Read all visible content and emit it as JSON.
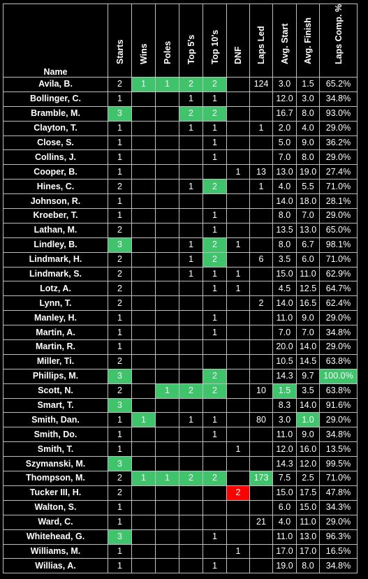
{
  "headers": {
    "name": "Name",
    "starts": "Starts",
    "wins": "Wins",
    "poles": "Poles",
    "top5": "Top 5's",
    "top10": "Top 10's",
    "dnf": "DNF",
    "laps_led": "Laps Led",
    "avg_start": "Avg. Start",
    "avg_finish": "Avg. Finish",
    "laps_comp": "Laps Comp. %"
  },
  "colors": {
    "background": "#000000",
    "text": "#ffffff",
    "grid": "#bfbfbf",
    "highlight_green": "#3fc36b",
    "highlight_red": "#ff0000"
  },
  "columns": [
    "name",
    "starts",
    "wins",
    "poles",
    "top5",
    "top10",
    "dnf",
    "laps_led",
    "avg_start",
    "avg_finish",
    "laps_comp"
  ],
  "rows": [
    {
      "name": "Avila, B.",
      "starts": "2",
      "wins": "1",
      "poles": "1",
      "top5": "2",
      "top10": "2",
      "dnf": "",
      "laps_led": "124",
      "avg_start": "3.0",
      "avg_finish": "1.5",
      "laps_comp": "65.2%",
      "hl": {
        "wins": "green",
        "poles": "green",
        "top5": "green",
        "top10": "green"
      }
    },
    {
      "name": "Bollinger, C.",
      "starts": "1",
      "wins": "",
      "poles": "",
      "top5": "1",
      "top10": "1",
      "dnf": "",
      "laps_led": "",
      "avg_start": "12.0",
      "avg_finish": "3.0",
      "laps_comp": "34.8%",
      "hl": {}
    },
    {
      "name": "Bramble, M.",
      "starts": "3",
      "wins": "",
      "poles": "",
      "top5": "2",
      "top10": "2",
      "dnf": "",
      "laps_led": "",
      "avg_start": "16.7",
      "avg_finish": "8.0",
      "laps_comp": "93.0%",
      "hl": {
        "starts": "green",
        "top5": "green",
        "top10": "green"
      }
    },
    {
      "name": "Clayton, T.",
      "starts": "1",
      "wins": "",
      "poles": "",
      "top5": "1",
      "top10": "1",
      "dnf": "",
      "laps_led": "1",
      "avg_start": "2.0",
      "avg_finish": "4.0",
      "laps_comp": "29.0%",
      "hl": {}
    },
    {
      "name": "Close, S.",
      "starts": "1",
      "wins": "",
      "poles": "",
      "top5": "",
      "top10": "1",
      "dnf": "",
      "laps_led": "",
      "avg_start": "5.0",
      "avg_finish": "9.0",
      "laps_comp": "36.2%",
      "hl": {}
    },
    {
      "name": "Collins, J.",
      "starts": "1",
      "wins": "",
      "poles": "",
      "top5": "",
      "top10": "1",
      "dnf": "",
      "laps_led": "",
      "avg_start": "7.0",
      "avg_finish": "8.0",
      "laps_comp": "29.0%",
      "hl": {}
    },
    {
      "name": "Cooper, B.",
      "starts": "1",
      "wins": "",
      "poles": "",
      "top5": "",
      "top10": "",
      "dnf": "1",
      "laps_led": "13",
      "avg_start": "13.0",
      "avg_finish": "19.0",
      "laps_comp": "27.4%",
      "hl": {}
    },
    {
      "name": "Hines, C.",
      "starts": "2",
      "wins": "",
      "poles": "",
      "top5": "1",
      "top10": "2",
      "dnf": "",
      "laps_led": "1",
      "avg_start": "4.0",
      "avg_finish": "5.5",
      "laps_comp": "71.0%",
      "hl": {
        "top10": "green"
      }
    },
    {
      "name": "Johnson, R.",
      "starts": "1",
      "wins": "",
      "poles": "",
      "top5": "",
      "top10": "",
      "dnf": "",
      "laps_led": "",
      "avg_start": "14.0",
      "avg_finish": "18.0",
      "laps_comp": "28.1%",
      "hl": {}
    },
    {
      "name": "Kroeber, T.",
      "starts": "1",
      "wins": "",
      "poles": "",
      "top5": "",
      "top10": "1",
      "dnf": "",
      "laps_led": "",
      "avg_start": "8.0",
      "avg_finish": "7.0",
      "laps_comp": "29.0%",
      "hl": {}
    },
    {
      "name": "Lathan, M.",
      "starts": "2",
      "wins": "",
      "poles": "",
      "top5": "",
      "top10": "1",
      "dnf": "",
      "laps_led": "",
      "avg_start": "13.5",
      "avg_finish": "13.0",
      "laps_comp": "65.0%",
      "hl": {}
    },
    {
      "name": "Lindley, B.",
      "starts": "3",
      "wins": "",
      "poles": "",
      "top5": "1",
      "top10": "2",
      "dnf": "1",
      "laps_led": "",
      "avg_start": "8.0",
      "avg_finish": "6.7",
      "laps_comp": "98.1%",
      "hl": {
        "starts": "green",
        "top10": "green"
      }
    },
    {
      "name": "Lindmark, H.",
      "starts": "2",
      "wins": "",
      "poles": "",
      "top5": "1",
      "top10": "2",
      "dnf": "",
      "laps_led": "6",
      "avg_start": "3.5",
      "avg_finish": "6.0",
      "laps_comp": "71.0%",
      "hl": {
        "top10": "green"
      }
    },
    {
      "name": "Lindmark, S.",
      "starts": "2",
      "wins": "",
      "poles": "",
      "top5": "1",
      "top10": "1",
      "dnf": "1",
      "laps_led": "",
      "avg_start": "15.0",
      "avg_finish": "11.0",
      "laps_comp": "62.9%",
      "hl": {}
    },
    {
      "name": "Lotz, A.",
      "starts": "2",
      "wins": "",
      "poles": "",
      "top5": "",
      "top10": "1",
      "dnf": "1",
      "laps_led": "",
      "avg_start": "4.5",
      "avg_finish": "12.5",
      "laps_comp": "64.7%",
      "hl": {}
    },
    {
      "name": "Lynn, T.",
      "starts": "2",
      "wins": "",
      "poles": "",
      "top5": "",
      "top10": "",
      "dnf": "",
      "laps_led": "2",
      "avg_start": "14.0",
      "avg_finish": "16.5",
      "laps_comp": "62.4%",
      "hl": {}
    },
    {
      "name": "Manley, H.",
      "starts": "1",
      "wins": "",
      "poles": "",
      "top5": "",
      "top10": "1",
      "dnf": "",
      "laps_led": "",
      "avg_start": "11.0",
      "avg_finish": "9.0",
      "laps_comp": "29.0%",
      "hl": {}
    },
    {
      "name": "Martin, A.",
      "starts": "1",
      "wins": "",
      "poles": "",
      "top5": "",
      "top10": "1",
      "dnf": "",
      "laps_led": "",
      "avg_start": "7.0",
      "avg_finish": "7.0",
      "laps_comp": "34.8%",
      "hl": {}
    },
    {
      "name": "Martin, R.",
      "starts": "1",
      "wins": "",
      "poles": "",
      "top5": "",
      "top10": "",
      "dnf": "",
      "laps_led": "",
      "avg_start": "20.0",
      "avg_finish": "14.0",
      "laps_comp": "29.0%",
      "hl": {}
    },
    {
      "name": "Miller, Ti.",
      "starts": "2",
      "wins": "",
      "poles": "",
      "top5": "",
      "top10": "",
      "dnf": "",
      "laps_led": "",
      "avg_start": "10.5",
      "avg_finish": "14.5",
      "laps_comp": "63.8%",
      "hl": {}
    },
    {
      "name": "Phillips, M.",
      "starts": "3",
      "wins": "",
      "poles": "",
      "top5": "",
      "top10": "2",
      "dnf": "",
      "laps_led": "",
      "avg_start": "14.3",
      "avg_finish": "9.7",
      "laps_comp": "100.0%",
      "hl": {
        "starts": "green",
        "top10": "green",
        "laps_comp": "green"
      }
    },
    {
      "name": "Scott, N.",
      "starts": "2",
      "wins": "",
      "poles": "1",
      "top5": "2",
      "top10": "2",
      "dnf": "",
      "laps_led": "10",
      "avg_start": "1.5",
      "avg_finish": "3.5",
      "laps_comp": "63.8%",
      "hl": {
        "poles": "green",
        "top5": "green",
        "top10": "green",
        "avg_start": "green"
      }
    },
    {
      "name": "Smart, T.",
      "starts": "3",
      "wins": "",
      "poles": "",
      "top5": "",
      "top10": "",
      "dnf": "",
      "laps_led": "",
      "avg_start": "8.3",
      "avg_finish": "14.0",
      "laps_comp": "91.6%",
      "hl": {
        "starts": "green"
      }
    },
    {
      "name": "Smith, Dan.",
      "starts": "1",
      "wins": "1",
      "poles": "",
      "top5": "1",
      "top10": "1",
      "dnf": "",
      "laps_led": "80",
      "avg_start": "3.0",
      "avg_finish": "1.0",
      "laps_comp": "29.0%",
      "hl": {
        "wins": "green",
        "avg_finish": "green"
      }
    },
    {
      "name": "Smith, Do.",
      "starts": "1",
      "wins": "",
      "poles": "",
      "top5": "",
      "top10": "1",
      "dnf": "",
      "laps_led": "",
      "avg_start": "11.0",
      "avg_finish": "9.0",
      "laps_comp": "34.8%",
      "hl": {}
    },
    {
      "name": "Smith, T.",
      "starts": "1",
      "wins": "",
      "poles": "",
      "top5": "",
      "top10": "",
      "dnf": "1",
      "laps_led": "",
      "avg_start": "12.0",
      "avg_finish": "16.0",
      "laps_comp": "13.5%",
      "hl": {}
    },
    {
      "name": "Szymanski, M.",
      "starts": "3",
      "wins": "",
      "poles": "",
      "top5": "",
      "top10": "",
      "dnf": "",
      "laps_led": "",
      "avg_start": "14.3",
      "avg_finish": "12.0",
      "laps_comp": "99.5%",
      "hl": {
        "starts": "green"
      }
    },
    {
      "name": "Thompson, M.",
      "starts": "2",
      "wins": "1",
      "poles": "1",
      "top5": "2",
      "top10": "2",
      "dnf": "",
      "laps_led": "173",
      "avg_start": "7.5",
      "avg_finish": "2.5",
      "laps_comp": "71.0%",
      "hl": {
        "wins": "green",
        "poles": "green",
        "top5": "green",
        "top10": "green",
        "laps_led": "green"
      }
    },
    {
      "name": "Tucker III, H.",
      "starts": "2",
      "wins": "",
      "poles": "",
      "top5": "",
      "top10": "",
      "dnf": "2",
      "laps_led": "",
      "avg_start": "15.0",
      "avg_finish": "17.5",
      "laps_comp": "47.8%",
      "hl": {
        "dnf": "red"
      }
    },
    {
      "name": "Walton, S.",
      "starts": "1",
      "wins": "",
      "poles": "",
      "top5": "",
      "top10": "",
      "dnf": "",
      "laps_led": "",
      "avg_start": "6.0",
      "avg_finish": "15.0",
      "laps_comp": "34.3%",
      "hl": {}
    },
    {
      "name": "Ward, C.",
      "starts": "1",
      "wins": "",
      "poles": "",
      "top5": "",
      "top10": "",
      "dnf": "",
      "laps_led": "21",
      "avg_start": "4.0",
      "avg_finish": "11.0",
      "laps_comp": "29.0%",
      "hl": {}
    },
    {
      "name": "Whitehead, G.",
      "starts": "3",
      "wins": "",
      "poles": "",
      "top5": "",
      "top10": "1",
      "dnf": "",
      "laps_led": "",
      "avg_start": "11.0",
      "avg_finish": "13.0",
      "laps_comp": "96.3%",
      "hl": {
        "starts": "green"
      }
    },
    {
      "name": "Williams, M.",
      "starts": "1",
      "wins": "",
      "poles": "",
      "top5": "",
      "top10": "",
      "dnf": "1",
      "laps_led": "",
      "avg_start": "17.0",
      "avg_finish": "17.0",
      "laps_comp": "16.5%",
      "hl": {}
    },
    {
      "name": "Willias, A.",
      "starts": "1",
      "wins": "",
      "poles": "",
      "top5": "",
      "top10": "1",
      "dnf": "",
      "laps_led": "",
      "avg_start": "19.0",
      "avg_finish": "8.0",
      "laps_comp": "34.8%",
      "hl": {}
    }
  ]
}
